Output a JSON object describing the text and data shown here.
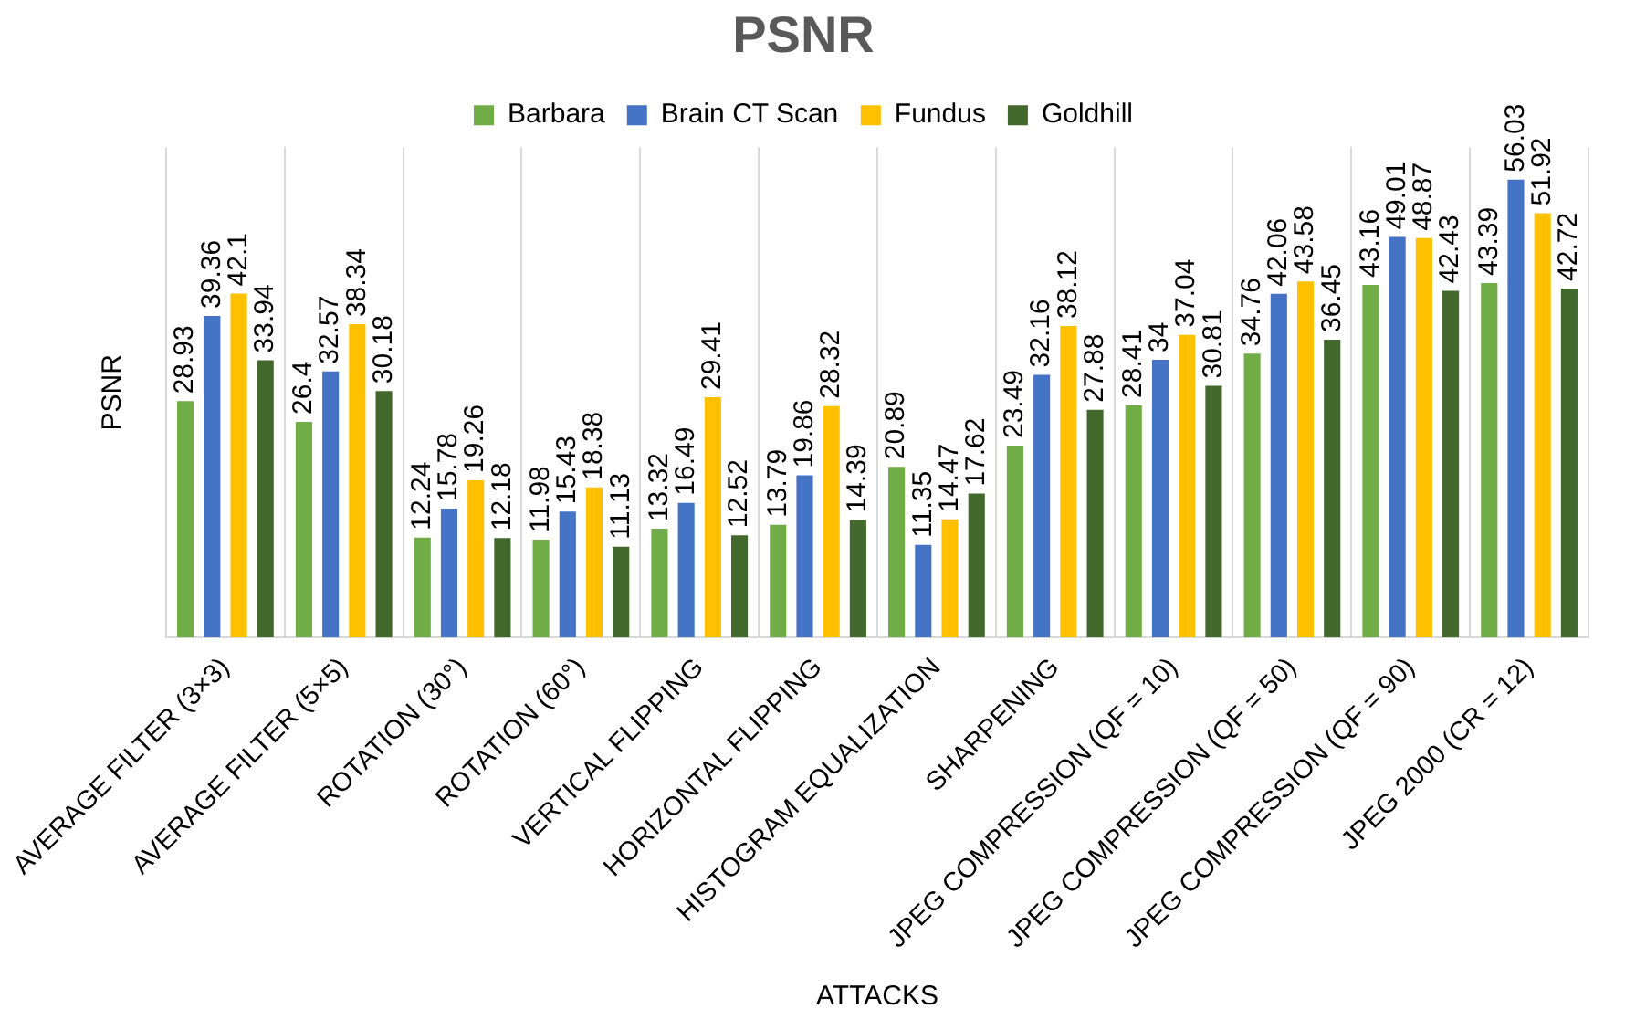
{
  "chart_data": {
    "type": "bar",
    "title": "PSNR",
    "xlabel": "ATTACKS",
    "ylabel": "PSNR",
    "categories": [
      "AVERAGE FILTER (3×3)",
      "AVERAGE FILTER (5×5)",
      "ROTATION (30°)",
      "ROTATION (60°)",
      "VERTICAL FLIPPING",
      "HORIZONTAL FLIPPING",
      "HISTOGRAM EQUALIZATION",
      "SHARPENING",
      "JPEG COMPRESSION (QF = 10)",
      "JPEG COMPRESSION (QF = 50)",
      "JPEG COMPRESSION (QF = 90)",
      "JPEG 2000 (CR = 12)"
    ],
    "series": [
      {
        "name": "Barbara",
        "color": "#70ad47",
        "values": [
          28.93,
          26.4,
          12.24,
          11.98,
          13.32,
          13.79,
          20.89,
          23.49,
          28.41,
          34.76,
          43.16,
          43.39
        ]
      },
      {
        "name": "Brain CT Scan",
        "color": "#4472c4",
        "values": [
          39.36,
          32.57,
          15.78,
          15.43,
          16.49,
          19.86,
          11.35,
          32.16,
          34,
          42.06,
          49.01,
          56.03
        ]
      },
      {
        "name": "Fundus",
        "color": "#ffc000",
        "values": [
          42.1,
          38.34,
          19.26,
          18.38,
          29.41,
          28.32,
          14.47,
          38.12,
          37.04,
          43.58,
          48.87,
          51.92
        ]
      },
      {
        "name": "Goldhill",
        "color": "#43682b",
        "values": [
          33.94,
          30.18,
          12.18,
          11.13,
          12.52,
          14.39,
          17.62,
          27.88,
          30.81,
          36.45,
          42.43,
          42.72
        ]
      }
    ],
    "ylim": [
      0,
      60
    ],
    "tick_labels": "x",
    "grid": "x",
    "legend": "top",
    "data_labels": true
  }
}
